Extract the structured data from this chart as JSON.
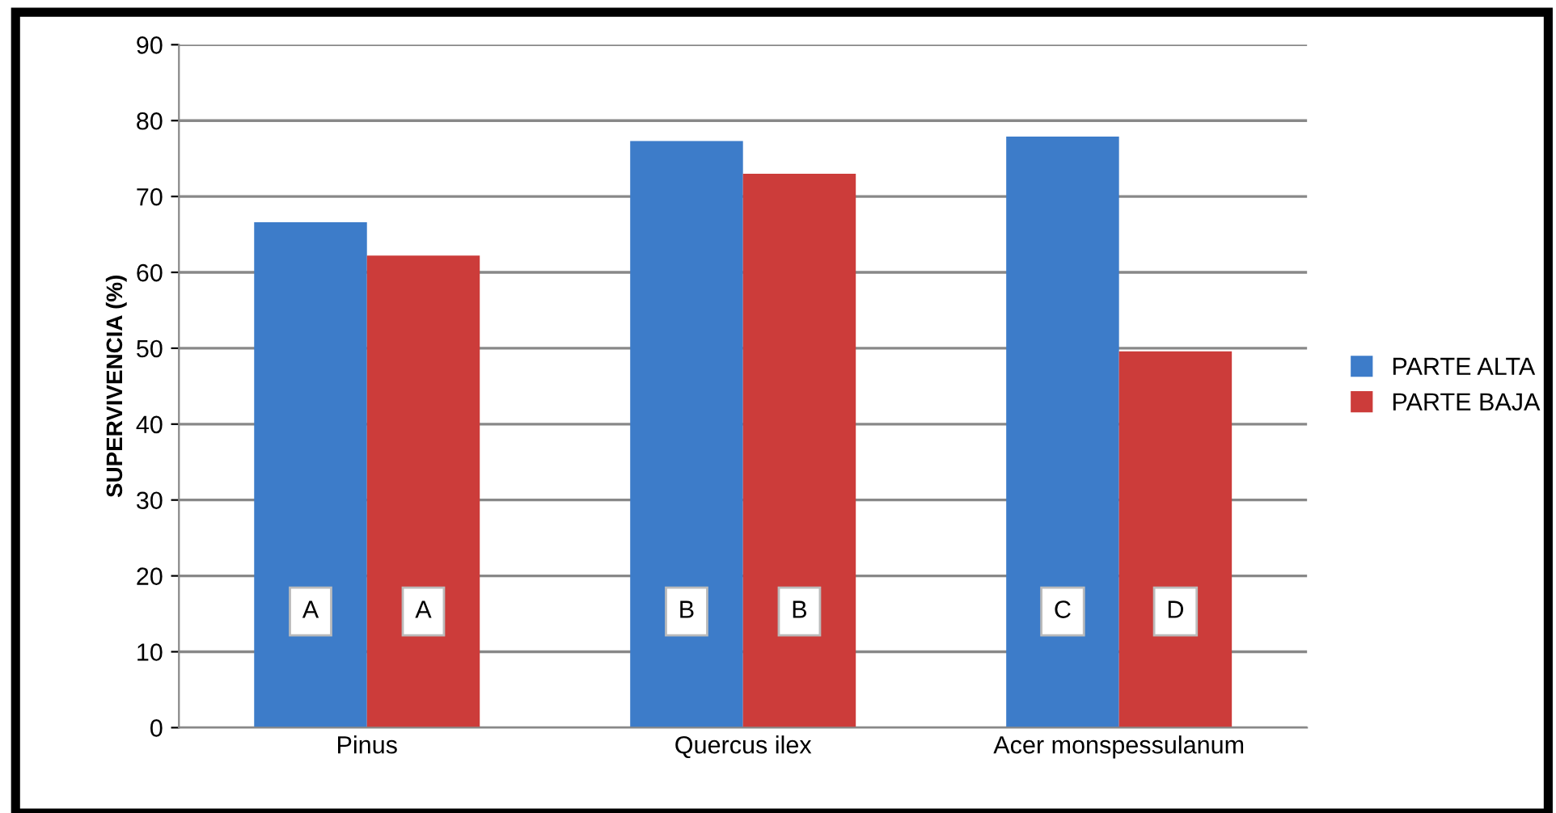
{
  "chart_data": {
    "type": "bar",
    "ylabel": "SUPERVIVENCIA (%)",
    "categories": [
      "Pinus",
      "Quercus ilex",
      "Acer monspessulanum"
    ],
    "series": [
      {
        "name": "PARTE ALTA",
        "color": "#3d7cc9",
        "values": [
          66.6,
          77.3,
          77.9
        ]
      },
      {
        "name": "PARTE BAJA",
        "color": "#cc3c3a",
        "values": [
          62.2,
          73.0,
          49.6
        ]
      }
    ],
    "annotations": [
      "A",
      "A",
      "B",
      "B",
      "C",
      "D"
    ],
    "ylim": [
      0,
      90
    ],
    "yticks": [
      0,
      10,
      20,
      30,
      40,
      50,
      60,
      70,
      80,
      90
    ],
    "grid": "y",
    "legend": "right"
  }
}
